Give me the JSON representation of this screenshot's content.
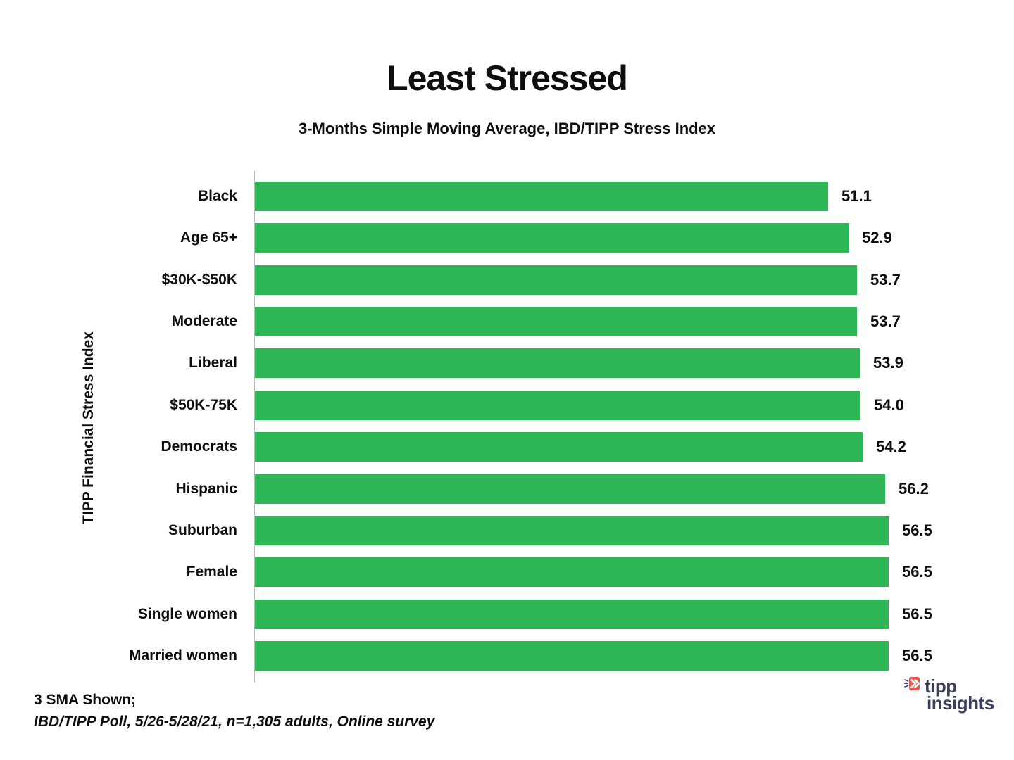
{
  "title": "Least Stressed",
  "subtitle": "3-Months Simple Moving Average, IBD/TIPP Stress Index",
  "y_axis_label": "TIPP Financial Stress Index",
  "footnotes": {
    "line1": "3 SMA Shown;",
    "line2": "IBD/TIPP Poll, 5/26-5/28/21, n=1,305 adults, Online survey"
  },
  "logo": {
    "icon": "megaphone-chevron-icon",
    "line1": "tipp",
    "line2": "insights"
  },
  "colors": {
    "bar_green": "#2fb656",
    "axis_gray": "#b9b9b9",
    "text_black": "#0d0d0d",
    "logo_navy": "#3a3f5e",
    "logo_red": "#e9564e"
  },
  "chart_data": {
    "type": "bar",
    "orientation": "horizontal",
    "title": "Least Stressed",
    "subtitle": "3-Months Simple Moving Average, IBD/TIPP Stress Index",
    "xlabel": "",
    "ylabel": "TIPP Financial Stress Index",
    "categories": [
      "Black",
      "Age 65+",
      "$30K-$50K",
      "Moderate",
      "Liberal",
      "$50K-75K",
      "Democrats",
      "Hispanic",
      "Suburban",
      "Female",
      "Single women",
      "Married women"
    ],
    "values": [
      51.1,
      52.9,
      53.7,
      53.7,
      53.9,
      54.0,
      54.2,
      56.2,
      56.5,
      56.5,
      56.5,
      56.5
    ],
    "value_labels": [
      "51.1",
      "52.9",
      "53.7",
      "53.7",
      "53.9",
      "54.0",
      "54.2",
      "56.2",
      "56.5",
      "56.5",
      "56.5",
      "56.5"
    ],
    "xlim": [
      0,
      64
    ],
    "grid": false,
    "legend": false,
    "data_labels": true
  }
}
